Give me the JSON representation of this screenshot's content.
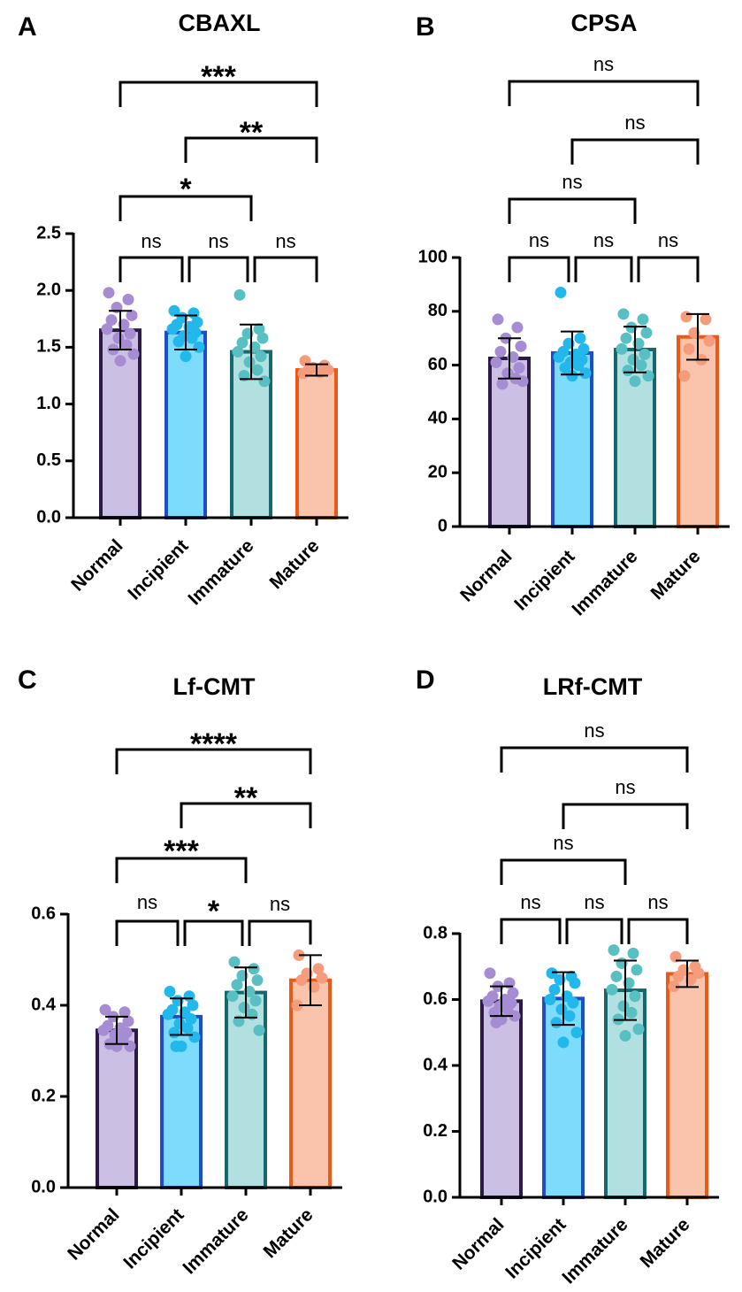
{
  "colors": {
    "Normal": {
      "fill": "#cbbfe4",
      "stroke": "#2a1a45",
      "dot": "#a58cd3"
    },
    "Incipient": {
      "fill": "#7ddcfb",
      "stroke": "#1f4ccc",
      "dot": "#22b8ec"
    },
    "Immature": {
      "fill": "#b2e0e0",
      "stroke": "#17686c",
      "dot": "#58c0c2"
    },
    "Mature": {
      "fill": "#fac3ac",
      "stroke": "#e95a18",
      "dot": "#f59c7c"
    },
    "axis": "#000000"
  },
  "chart_data": [
    {
      "letter": "A",
      "type": "bar",
      "title": "CBAXL",
      "categories": [
        "Normal",
        "Incipient",
        "Immature",
        "Mature"
      ],
      "values": [
        1.65,
        1.63,
        1.46,
        1.3
      ],
      "sd": [
        0.17,
        0.15,
        0.24,
        0.05
      ],
      "points": [
        [
          1.98,
          1.92,
          1.85,
          1.78,
          1.74,
          1.7,
          1.66,
          1.62,
          1.58,
          1.52,
          1.48,
          1.44,
          1.38
        ],
        [
          1.82,
          1.8,
          1.76,
          1.72,
          1.7,
          1.68,
          1.66,
          1.63,
          1.6,
          1.58,
          1.55,
          1.5,
          1.42
        ],
        [
          1.96,
          1.66,
          1.62,
          1.58,
          1.54,
          1.5,
          1.46,
          1.42,
          1.37,
          1.3,
          1.25,
          1.2
        ],
        [
          1.38,
          1.34,
          1.32,
          1.3,
          1.29,
          1.28,
          1.27
        ]
      ],
      "ylim": [
        0,
        2.5
      ],
      "yticks": [
        "0.0",
        "0.5",
        "1.0",
        "1.5",
        "2.0",
        "2.5"
      ],
      "comparisons": [
        {
          "from": "Normal",
          "to": "Incipient",
          "label": "ns"
        },
        {
          "from": "Incipient",
          "to": "Immature",
          "label": "ns"
        },
        {
          "from": "Immature",
          "to": "Mature",
          "label": "ns"
        },
        {
          "from": "Normal",
          "to": "Immature",
          "label": "*"
        },
        {
          "from": "Incipient",
          "to": "Mature",
          "label": "**"
        },
        {
          "from": "Normal",
          "to": "Mature",
          "label": "***"
        }
      ]
    },
    {
      "letter": "B",
      "type": "bar",
      "title": "CPSA",
      "categories": [
        "Normal",
        "Incipient",
        "Immature",
        "Mature"
      ],
      "values": [
        62.5,
        64.5,
        65.8,
        70.5
      ],
      "sd": [
        7.5,
        8.0,
        8.5,
        8.5
      ],
      "points": [
        [
          77,
          74,
          70,
          67,
          65,
          63,
          61,
          59,
          57,
          55,
          53,
          54
        ],
        [
          87,
          70,
          68,
          66,
          65,
          64,
          63,
          62,
          61,
          60,
          59,
          57,
          56
        ],
        [
          79,
          77,
          74,
          72,
          70,
          68,
          66,
          64,
          62,
          60,
          58,
          56,
          54
        ],
        [
          78,
          77,
          72,
          69,
          66,
          62,
          56
        ]
      ],
      "ylim": [
        0,
        100
      ],
      "yticks": [
        "0",
        "20",
        "40",
        "60",
        "80",
        "100"
      ],
      "comparisons": [
        {
          "from": "Normal",
          "to": "Incipient",
          "label": "ns"
        },
        {
          "from": "Incipient",
          "to": "Immature",
          "label": "ns"
        },
        {
          "from": "Immature",
          "to": "Mature",
          "label": "ns"
        },
        {
          "from": "Normal",
          "to": "Immature",
          "label": "ns"
        },
        {
          "from": "Incipient",
          "to": "Mature",
          "label": "ns"
        },
        {
          "from": "Normal",
          "to": "Mature",
          "label": "ns"
        }
      ]
    },
    {
      "letter": "C",
      "type": "bar",
      "title": "Lf-CMT",
      "categories": [
        "Normal",
        "Incipient",
        "Immature",
        "Mature"
      ],
      "values": [
        0.345,
        0.375,
        0.428,
        0.455
      ],
      "sd": [
        0.03,
        0.04,
        0.055,
        0.055
      ],
      "points": [
        [
          0.39,
          0.385,
          0.375,
          0.365,
          0.355,
          0.35,
          0.345,
          0.34,
          0.335,
          0.325,
          0.315,
          0.31,
          0.31
        ],
        [
          0.43,
          0.42,
          0.41,
          0.4,
          0.39,
          0.385,
          0.38,
          0.37,
          0.36,
          0.35,
          0.34,
          0.33,
          0.31,
          0.31
        ],
        [
          0.495,
          0.48,
          0.465,
          0.455,
          0.445,
          0.43,
          0.42,
          0.41,
          0.395,
          0.38,
          0.365,
          0.345
        ],
        [
          0.51,
          0.48,
          0.47,
          0.46,
          0.455,
          0.44,
          0.4
        ]
      ],
      "ylim": [
        0,
        0.6
      ],
      "yticks": [
        "0.0",
        "0.2",
        "0.4",
        "0.6"
      ],
      "comparisons": [
        {
          "from": "Normal",
          "to": "Incipient",
          "label": "ns"
        },
        {
          "from": "Incipient",
          "to": "Immature",
          "label": "*"
        },
        {
          "from": "Immature",
          "to": "Mature",
          "label": "ns"
        },
        {
          "from": "Normal",
          "to": "Immature",
          "label": "***"
        },
        {
          "from": "Incipient",
          "to": "Mature",
          "label": "**"
        },
        {
          "from": "Normal",
          "to": "Mature",
          "label": "****"
        }
      ]
    },
    {
      "letter": "D",
      "type": "bar",
      "title": "LRf-CMT",
      "categories": [
        "Normal",
        "Incipient",
        "Immature",
        "Mature"
      ],
      "values": [
        0.595,
        0.603,
        0.628,
        0.678
      ],
      "sd": [
        0.045,
        0.08,
        0.09,
        0.04
      ],
      "points": [
        [
          0.68,
          0.65,
          0.64,
          0.62,
          0.61,
          0.6,
          0.595,
          0.59,
          0.58,
          0.57,
          0.56,
          0.55,
          0.54,
          0.53
        ],
        [
          0.68,
          0.67,
          0.66,
          0.65,
          0.63,
          0.61,
          0.6,
          0.59,
          0.57,
          0.55,
          0.53,
          0.5,
          0.47
        ],
        [
          0.75,
          0.74,
          0.71,
          0.69,
          0.67,
          0.65,
          0.63,
          0.61,
          0.58,
          0.56,
          0.54,
          0.51,
          0.49
        ],
        [
          0.73,
          0.7,
          0.69,
          0.68,
          0.67,
          0.66,
          0.64
        ]
      ],
      "ylim": [
        0,
        0.8
      ],
      "yticks": [
        "0.0",
        "0.2",
        "0.4",
        "0.6",
        "0.8"
      ],
      "comparisons": [
        {
          "from": "Normal",
          "to": "Incipient",
          "label": "ns"
        },
        {
          "from": "Incipient",
          "to": "Immature",
          "label": "ns"
        },
        {
          "from": "Immature",
          "to": "Mature",
          "label": "ns"
        },
        {
          "from": "Normal",
          "to": "Immature",
          "label": "ns"
        },
        {
          "from": "Incipient",
          "to": "Mature",
          "label": "ns"
        },
        {
          "from": "Normal",
          "to": "Mature",
          "label": "ns"
        }
      ]
    }
  ]
}
